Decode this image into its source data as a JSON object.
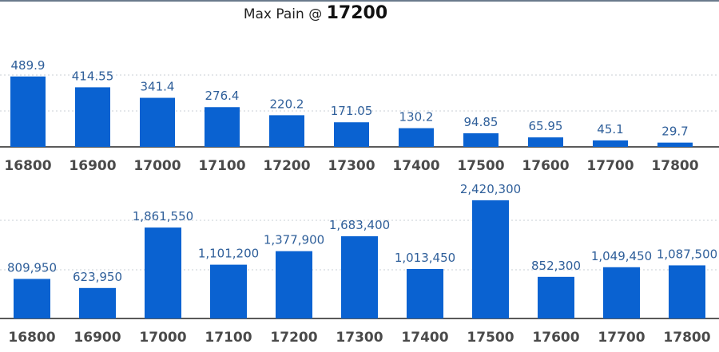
{
  "title": {
    "prefix": "Max Pain @ ",
    "strike": "17200"
  },
  "colors": {
    "bar": "#0a62d1",
    "value_label": "#2f5f9a",
    "tick_label": "#4a4a4a"
  },
  "chart_data": [
    {
      "type": "bar",
      "categories": [
        "16800",
        "16900",
        "17000",
        "17100",
        "17200",
        "17300",
        "17400",
        "17500",
        "17600",
        "17700",
        "17800"
      ],
      "values": [
        489.9,
        414.55,
        341.4,
        276.4,
        220.2,
        171.05,
        130.2,
        94.85,
        65.95,
        45.1,
        29.7
      ],
      "value_labels": [
        "489.9",
        "414.55",
        "341.4",
        "276.4",
        "220.2",
        "171.05",
        "130.2",
        "94.85",
        "65.95",
        "45.1",
        "29.7"
      ],
      "ylim": [
        0,
        500
      ],
      "grid": true
    },
    {
      "type": "bar",
      "categories": [
        "16800",
        "16900",
        "17000",
        "17100",
        "17200",
        "17300",
        "17400",
        "17500",
        "17600",
        "17700",
        "17800"
      ],
      "values": [
        809950,
        623950,
        1861550,
        1101200,
        1377900,
        1683400,
        1013450,
        2420300,
        852300,
        1049450,
        1087500
      ],
      "value_labels": [
        "809,950",
        "623,950",
        "1,861,550",
        "1,101,200",
        "1,377,900",
        "1,683,400",
        "1,013,450",
        "2,420,300",
        "852,300",
        "1,049,450",
        "1,087,500"
      ],
      "ylim": [
        0,
        2500000
      ],
      "grid": true
    }
  ]
}
